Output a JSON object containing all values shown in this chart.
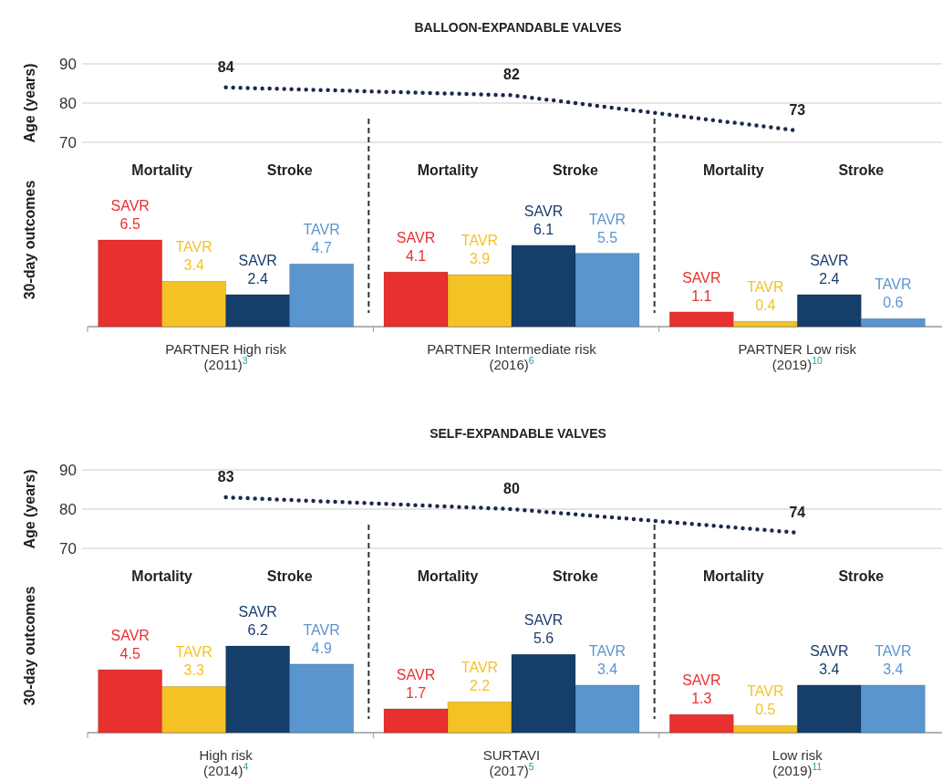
{
  "chart_data": [
    {
      "type": "line",
      "title": "BALLOON-EXPANDABLE VALVES",
      "ylabel": "Age (years)",
      "categories": [
        null,
        null,
        null
      ],
      "series": [
        {
          "color": "#1b2a4a",
          "values": [
            84,
            82,
            73
          ]
        }
      ],
      "ylim": [
        70,
        90
      ],
      "yticks": [
        70,
        80,
        90
      ],
      "grid": "y",
      "data_labels": true,
      "line_style": "dotted",
      "marker": "none"
    },
    {
      "type": "bar",
      "ylabel": "30-day outcomes",
      "categories": [
        "PARTNER High risk (2011)$^{3}$",
        "PARTNER Intermediate risk (2016)$^{6}$",
        "PARTNER Low risk (2019)$^{10}$"
      ],
      "series": [
        {
          "name": "SAVR",
          "color": "#e8302f",
          "values": [
            6.5,
            4.1,
            1.1
          ]
        },
        {
          "name": "TAVR",
          "color": "#f5c226",
          "values": [
            3.4,
            3.9,
            0.4
          ]
        },
        {
          "name": "SAVR",
          "color": "#163e6b",
          "values": [
            2.4,
            6.1,
            2.4
          ]
        },
        {
          "name": "TAVR",
          "color": "#5b95d0",
          "values": [
            4.7,
            5.5,
            0.6
          ]
        }
      ],
      "annotations": [
        "Mortality",
        "Stroke",
        "Mortality",
        "Stroke",
        "Mortality",
        "Stroke"
      ],
      "data_labels": true,
      "tick_labels": "x"
    },
    {
      "type": "line",
      "title": "SELF-EXPANDABLE VALVES",
      "ylabel": "Age (years)",
      "categories": [
        null,
        null,
        null
      ],
      "series": [
        {
          "color": "#1b2a4a",
          "values": [
            83,
            80,
            74
          ]
        }
      ],
      "ylim": [
        70,
        90
      ],
      "yticks": [
        70,
        80,
        90
      ],
      "grid": "y",
      "data_labels": true,
      "line_style": "dotted",
      "marker": "none"
    },
    {
      "type": "bar",
      "ylabel": "30-day outcomes",
      "categories": [
        "High risk (2014)$^{4}$",
        "SURTAVI (2017)$^{5}$",
        "Low risk (2019)$^{11}$"
      ],
      "series": [
        {
          "name": "SAVR",
          "color": "#e8302f",
          "values": [
            4.5,
            1.7,
            1.3
          ]
        },
        {
          "name": "TAVR",
          "color": "#f5c226",
          "values": [
            3.3,
            2.2,
            0.5
          ]
        },
        {
          "name": "SAVR",
          "color": "#163e6b",
          "values": [
            6.2,
            5.6,
            3.4
          ]
        },
        {
          "name": "TAVR",
          "color": "#5b95d0",
          "values": [
            4.9,
            3.4,
            3.4
          ]
        }
      ],
      "annotations": [
        "Mortality",
        "Stroke",
        "Mortality",
        "Stroke",
        "Mortality",
        "Stroke"
      ],
      "data_labels": true,
      "tick_labels": "x"
    }
  ]
}
